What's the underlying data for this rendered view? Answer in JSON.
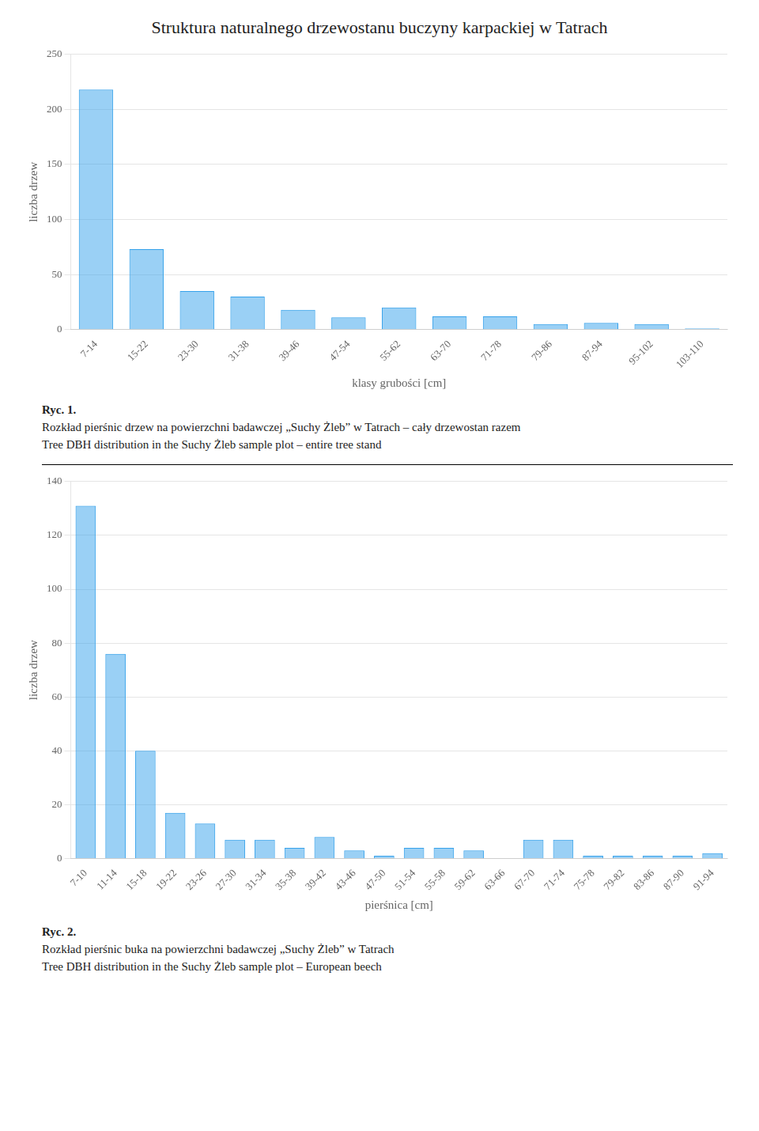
{
  "title": "Struktura naturalnego drzewostanu buczyny karpackiej w Tatrach",
  "chart_data": [
    {
      "type": "bar",
      "categories": [
        "7-14",
        "15-22",
        "23-30",
        "31-38",
        "39-46",
        "47-54",
        "55-62",
        "63-70",
        "71-78",
        "79-86",
        "87-94",
        "95-102",
        "103-110"
      ],
      "values": [
        218,
        73,
        35,
        30,
        18,
        11,
        20,
        12,
        12,
        5,
        6,
        5,
        1
      ],
      "y_label": "liczba drzew",
      "x_label": "klasy grubości [cm]",
      "ylim": [
        0,
        250
      ],
      "yticks": [
        0,
        50,
        100,
        150,
        200,
        250
      ],
      "grid": true,
      "caption": {
        "label": "Ryc. 1.",
        "lines": [
          "Rozkład pierśnic drzew na powierzchni badawczej „Suchy Żleb” w Tatrach – cały drzewostan razem",
          "Tree DBH distribution in the Suchy Żleb sample plot – entire tree stand"
        ]
      }
    },
    {
      "type": "bar",
      "categories": [
        "7-10",
        "11-14",
        "15-18",
        "19-22",
        "23-26",
        "27-30",
        "31-34",
        "35-38",
        "39-42",
        "43-46",
        "47-50",
        "51-54",
        "55-58",
        "59-62",
        "63-66",
        "67-70",
        "71-74",
        "75-78",
        "79-82",
        "83-86",
        "87-90",
        "91-94"
      ],
      "values": [
        131,
        76,
        40,
        17,
        13,
        7,
        7,
        4,
        8,
        3,
        1,
        4,
        4,
        3,
        0,
        7,
        7,
        1,
        1,
        1,
        1,
        2
      ],
      "y_label": "liczba drzew",
      "x_label": "pierśnica [cm]",
      "ylim": [
        0,
        140
      ],
      "yticks": [
        0,
        20,
        40,
        60,
        80,
        100,
        120,
        140
      ],
      "grid": true,
      "caption": {
        "label": "Ryc. 2.",
        "lines": [
          "Rozkład pierśnic buka na powierzchni badawczej „Suchy Żleb” w Tatrach",
          "Tree DBH distribution in the Suchy Żleb sample plot – European beech"
        ]
      }
    }
  ]
}
